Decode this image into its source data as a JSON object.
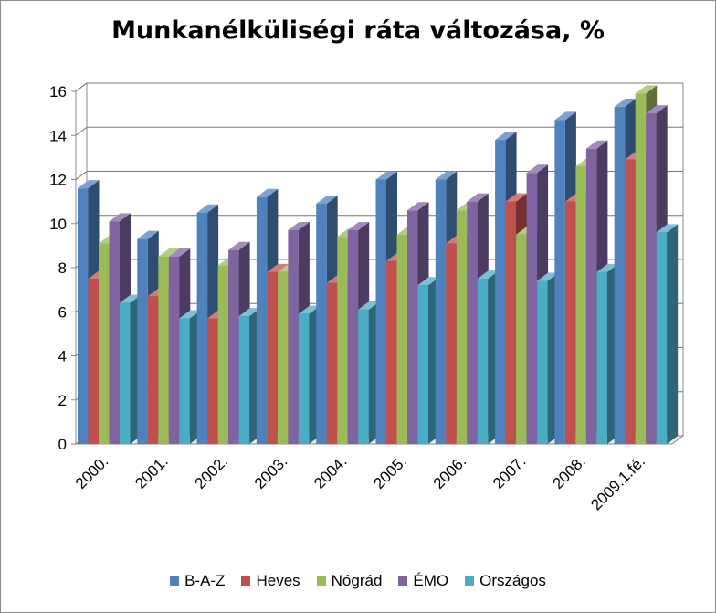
{
  "chart_data": {
    "type": "bar",
    "title": "Munkanélküliségi ráta változása, %",
    "xlabel": "",
    "ylabel": "",
    "ylim": [
      0,
      16
    ],
    "yticks": [
      "0",
      "2",
      "4",
      "6",
      "8",
      "10",
      "12",
      "14",
      "16"
    ],
    "grid": true,
    "legend_position": "bottom",
    "categories": [
      "2000.",
      "2001.",
      "2002.",
      "2003.",
      "2004.",
      "2005.",
      "2006.",
      "2007.",
      "2008.",
      "2009.1.fé."
    ],
    "series": [
      {
        "name": "B-A-Z",
        "color": "#4F81BD",
        "values": [
          11.6,
          9.3,
          10.5,
          11.2,
          10.9,
          12.0,
          12.0,
          13.8,
          14.7,
          15.3
        ]
      },
      {
        "name": "Heves",
        "color": "#C0504D",
        "values": [
          7.5,
          6.7,
          5.7,
          7.8,
          7.3,
          8.3,
          9.1,
          11.0,
          11.0,
          12.9
        ]
      },
      {
        "name": "Nógrád",
        "color": "#9BBB59",
        "values": [
          9.1,
          8.5,
          8.1,
          7.8,
          9.4,
          9.5,
          10.6,
          9.5,
          12.6,
          15.9
        ]
      },
      {
        "name": "ÉMO",
        "color": "#8064A2",
        "values": [
          10.1,
          8.5,
          8.8,
          9.7,
          9.7,
          10.6,
          11.0,
          12.3,
          13.4,
          15.0
        ]
      },
      {
        "name": "Országos",
        "color": "#4BACC6",
        "values": [
          6.4,
          5.7,
          5.8,
          5.9,
          6.1,
          7.2,
          7.5,
          7.4,
          7.8,
          9.6
        ]
      }
    ]
  }
}
